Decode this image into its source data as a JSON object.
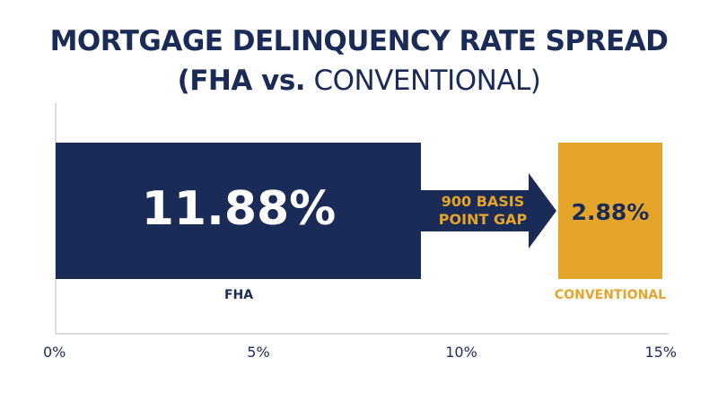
{
  "chart_data": {
    "type": "bar",
    "title": "MORTGAGE DELINQUENCY RATE SPREAD",
    "subtitle_bold": "(FHA vs.",
    "subtitle_rest": " CONVENTIONAL)",
    "categories": [
      "FHA",
      "CONVENTIONAL"
    ],
    "values": [
      11.88,
      2.88
    ],
    "value_labels": [
      "11.88%",
      "2.88%"
    ],
    "series_colors": [
      "#1a2b57",
      "#e5a52a"
    ],
    "annotation": {
      "line1": "900 BASIS",
      "line2": "POINT GAP"
    },
    "x_ticks": [
      0,
      5,
      10,
      15
    ],
    "x_tick_labels": [
      "0%",
      "5%",
      "10%",
      "15%"
    ],
    "xlim": [
      0,
      15
    ]
  }
}
